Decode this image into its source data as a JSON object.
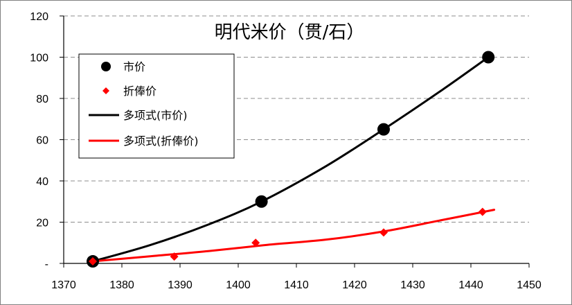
{
  "chart_data": {
    "type": "scatter",
    "title": "明代米价（贯/石）",
    "xlabel": "",
    "ylabel": "",
    "xlim": [
      1370,
      1450
    ],
    "ylim": [
      0,
      120
    ],
    "x_ticks": [
      "1370",
      "1380",
      "1390",
      "1400",
      "1410",
      "1420",
      "1430",
      "1440",
      "1450"
    ],
    "y_ticks": [
      "-",
      "20",
      "40",
      "60",
      "80",
      "100",
      "120"
    ],
    "grid": "horizontal dashed",
    "legend_position": "top-left",
    "series": [
      {
        "name": "市价",
        "kind": "points",
        "marker": "circle",
        "color": "#000000",
        "points": [
          {
            "x": 1375,
            "y": 1
          },
          {
            "x": 1404,
            "y": 30
          },
          {
            "x": 1425,
            "y": 65
          },
          {
            "x": 1443,
            "y": 100
          }
        ]
      },
      {
        "name": "折俸价",
        "kind": "points",
        "marker": "diamond",
        "color": "#ff0000",
        "points": [
          {
            "x": 1375,
            "y": 1
          },
          {
            "x": 1389,
            "y": 3.3
          },
          {
            "x": 1403,
            "y": 10
          },
          {
            "x": 1425,
            "y": 15
          },
          {
            "x": 1442,
            "y": 25
          }
        ]
      },
      {
        "name": "多项式(市价)",
        "kind": "trendline",
        "color": "#000000",
        "points": [
          {
            "x": 1375,
            "y": 1
          },
          {
            "x": 1385,
            "y": 9
          },
          {
            "x": 1395,
            "y": 19
          },
          {
            "x": 1404,
            "y": 30
          },
          {
            "x": 1415,
            "y": 47
          },
          {
            "x": 1425,
            "y": 65
          },
          {
            "x": 1435,
            "y": 84
          },
          {
            "x": 1443,
            "y": 100
          }
        ]
      },
      {
        "name": "多项式(折俸价)",
        "kind": "trendline",
        "color": "#ff0000",
        "points": [
          {
            "x": 1375,
            "y": 1
          },
          {
            "x": 1385,
            "y": 3.5
          },
          {
            "x": 1395,
            "y": 6
          },
          {
            "x": 1405,
            "y": 9
          },
          {
            "x": 1415,
            "y": 11.5
          },
          {
            "x": 1425,
            "y": 15.5
          },
          {
            "x": 1435,
            "y": 21
          },
          {
            "x": 1444,
            "y": 26
          }
        ]
      }
    ]
  }
}
